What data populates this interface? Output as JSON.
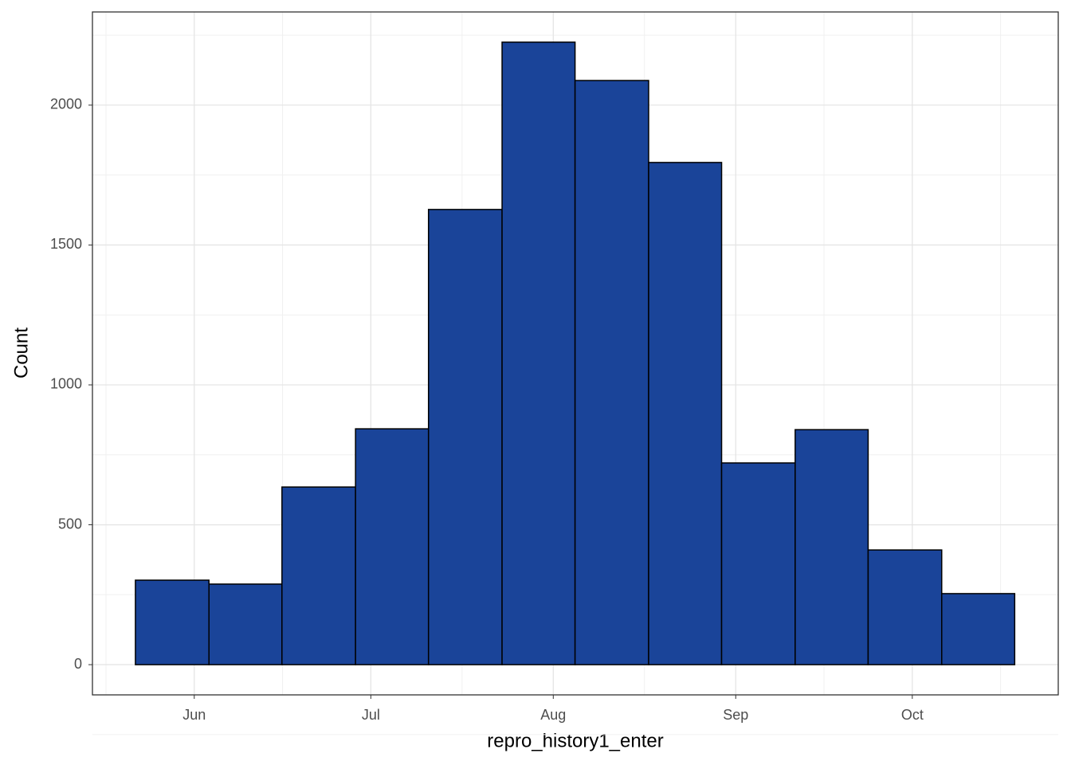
{
  "chart_data": {
    "type": "histogram",
    "x_label": "repro_history1_enter",
    "y_label": "Count",
    "bins": [
      142,
      154.5,
      166.9,
      179.4,
      191.8,
      204.3,
      216.7,
      229.2,
      241.6,
      254.1,
      266.5,
      279.0,
      291.4
    ],
    "values": [
      302,
      288,
      635,
      843,
      1627,
      2225,
      2088,
      1795,
      721,
      840,
      410,
      254
    ],
    "color": "#1a4499",
    "edge_color": "#000000",
    "xlim": [
      134.7,
      298.8
    ],
    "xticks": [
      {
        "value": 152,
        "label": "Jun"
      },
      {
        "value": 182,
        "label": "Jul"
      },
      {
        "value": 213,
        "label": "Aug"
      },
      {
        "value": 244,
        "label": "Sep"
      },
      {
        "value": 274,
        "label": "Oct"
      }
    ],
    "ylim": [
      -108,
      2333
    ],
    "yticks": [
      0,
      500,
      1000,
      1500,
      2000
    ],
    "grid": true
  }
}
